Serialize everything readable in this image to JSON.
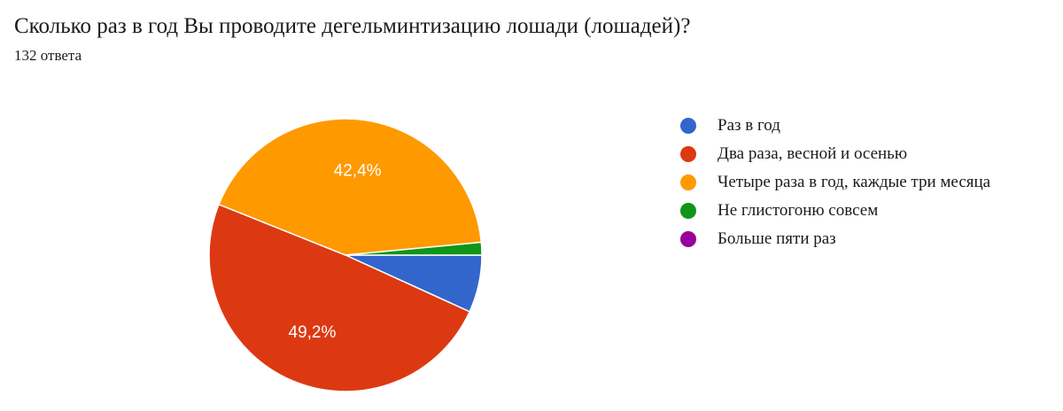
{
  "header": {
    "title": "Сколько раз в год Вы проводите дегельминтизацию лошади (лошадей)?",
    "subtitle": "132 ответа"
  },
  "chart_data": {
    "type": "pie",
    "title": "Сколько раз в год Вы проводите дегельминтизацию лошади (лошадей)?",
    "total_responses": 132,
    "start_angle_deg": 0,
    "direction": "clockwise",
    "legend_position": "right",
    "slices": [
      {
        "label": "Раз в год",
        "value": 6.8,
        "color": "#3366cc",
        "data_label": ""
      },
      {
        "label": "Два раза, весной и осенью",
        "value": 49.2,
        "color": "#dc3912",
        "data_label": "49,2%"
      },
      {
        "label": "Четыре раза в год, каждые три месяца",
        "value": 42.4,
        "color": "#ff9900",
        "data_label": "42,4%"
      },
      {
        "label": "Не глистогоню совсем",
        "value": 1.5,
        "color": "#109618",
        "data_label": ""
      },
      {
        "label": "Больше пяти раз",
        "value": 0,
        "color": "#990099",
        "data_label": ""
      }
    ]
  }
}
